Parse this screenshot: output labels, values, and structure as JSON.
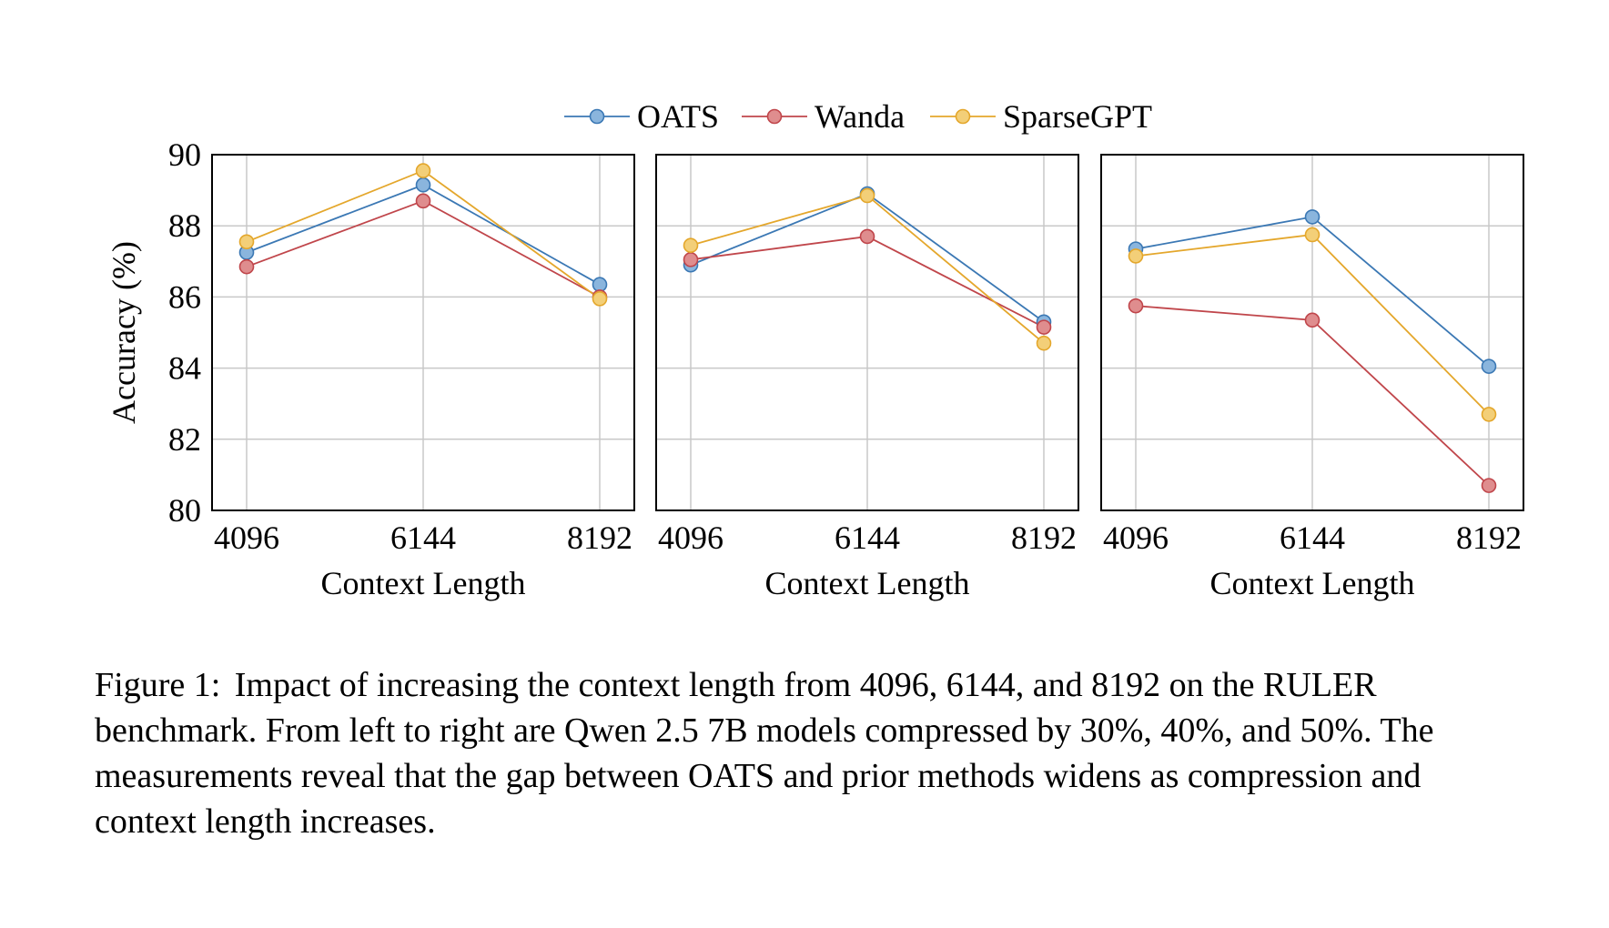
{
  "legend": {
    "entries": [
      "OATS",
      "Wanda",
      "SparseGPT"
    ]
  },
  "colors": {
    "OATS": {
      "line": "#3b78b4",
      "fill": "#8ab5dd"
    },
    "Wanda": {
      "line": "#c0464b",
      "fill": "#df8d8e"
    },
    "SparseGPT": {
      "line": "#e4a72c",
      "fill": "#f3cf78"
    }
  },
  "chart_data": [
    {
      "type": "line",
      "x": [
        4096,
        6144,
        8192
      ],
      "xlabel": "Context Length",
      "ylabel": "Accuracy (%)",
      "ylim": [
        80,
        90
      ],
      "yticks": [
        80,
        82,
        84,
        86,
        88,
        90
      ],
      "grid": true,
      "series": [
        {
          "name": "OATS",
          "values": [
            87.25,
            89.15,
            86.35
          ]
        },
        {
          "name": "Wanda",
          "values": [
            86.85,
            88.7,
            86.0
          ]
        },
        {
          "name": "SparseGPT",
          "values": [
            87.55,
            89.55,
            85.95
          ]
        }
      ]
    },
    {
      "type": "line",
      "x": [
        4096,
        6144,
        8192
      ],
      "xlabel": "Context Length",
      "ylim": [
        80,
        90
      ],
      "grid": true,
      "series": [
        {
          "name": "OATS",
          "values": [
            86.9,
            88.9,
            85.3
          ]
        },
        {
          "name": "Wanda",
          "values": [
            87.05,
            87.7,
            85.15
          ]
        },
        {
          "name": "SparseGPT",
          "values": [
            87.45,
            88.85,
            84.7
          ]
        }
      ]
    },
    {
      "type": "line",
      "x": [
        4096,
        6144,
        8192
      ],
      "xlabel": "Context Length",
      "ylim": [
        80,
        90
      ],
      "grid": true,
      "series": [
        {
          "name": "OATS",
          "values": [
            87.35,
            88.25,
            84.05
          ]
        },
        {
          "name": "Wanda",
          "values": [
            85.75,
            85.35,
            80.7
          ]
        },
        {
          "name": "SparseGPT",
          "values": [
            87.15,
            87.75,
            82.7
          ]
        }
      ]
    }
  ],
  "caption": {
    "label": "Figure 1:",
    "text": "Impact of increasing the context length from 4096, 6144, and 8192 on the RULER benchmark. From left to right are Qwen 2.5 7B models compressed by 30%, 40%, and 50%. The measurements reveal that the gap between OATS and prior methods widens as compression and context length increases."
  }
}
